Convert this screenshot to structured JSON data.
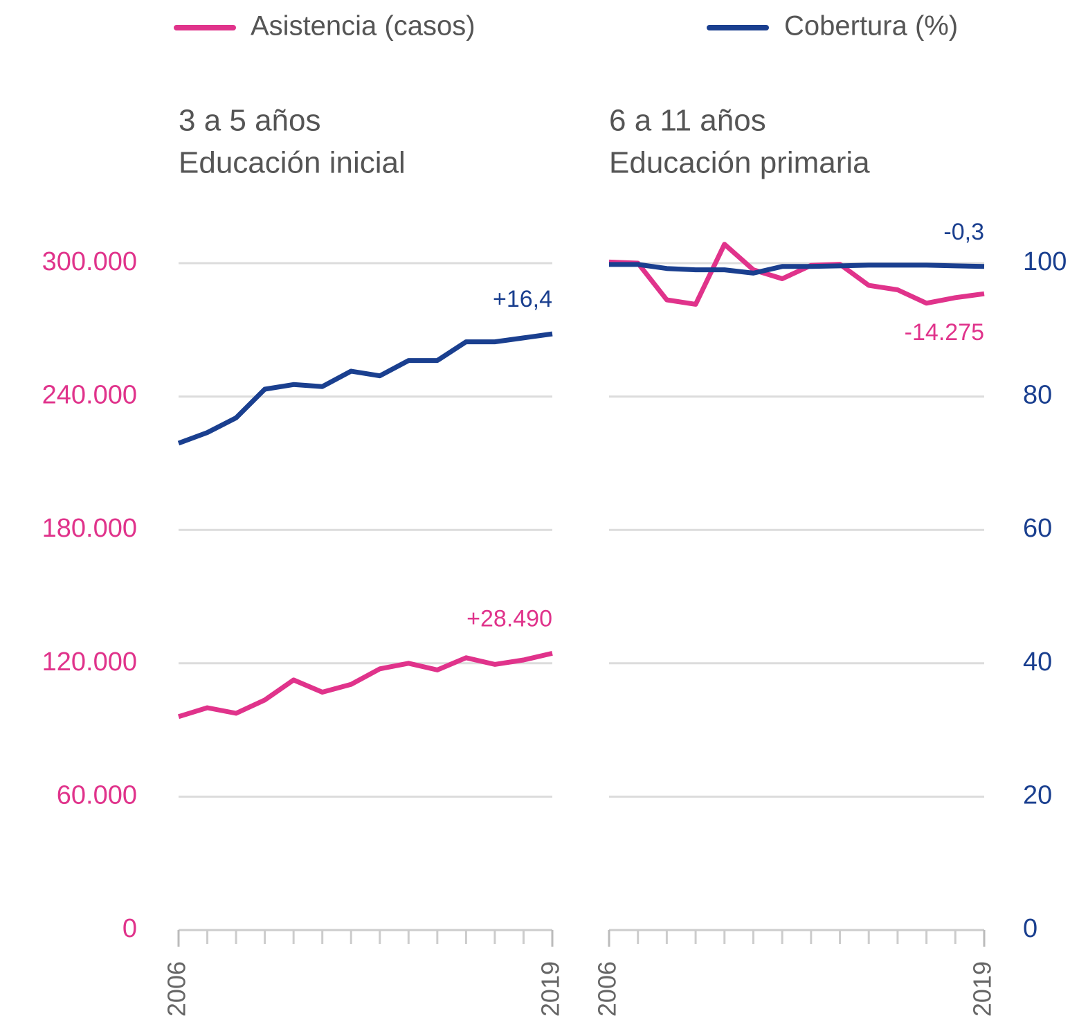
{
  "chart_data": [
    {
      "type": "line",
      "title": "3 a 5 años",
      "subtitle": "Educación inicial",
      "x": [
        2006,
        2007,
        2008,
        2009,
        2010,
        2011,
        2012,
        2013,
        2014,
        2015,
        2016,
        2017,
        2018,
        2019
      ],
      "xlim": [
        2006,
        2019
      ],
      "xticks": [
        2006,
        2019
      ],
      "ylim": [
        0,
        300000
      ],
      "yticks": [
        0,
        {
          "value": 60000,
          "label": "60.000"
        },
        {
          "value": 120000,
          "label": "120.000"
        },
        {
          "value": 180000,
          "label": "180.000"
        },
        {
          "value": 240000,
          "label": "240.000"
        },
        {
          "value": 300000,
          "label": "300.000"
        }
      ],
      "y2lim": [
        0,
        100
      ],
      "grid": true,
      "series": [
        {
          "name": "Asistencia (casos)",
          "color": "#e0338b",
          "axis": "y",
          "end_label": "+28.490",
          "values": [
            96000,
            100000,
            97500,
            103500,
            112500,
            107000,
            110500,
            117500,
            120000,
            117000,
            122500,
            119500,
            121500,
            124490
          ]
        },
        {
          "name": "Cobertura (%)",
          "color": "#1a3f8f",
          "axis": "y2",
          "end_label": "+16,4",
          "values": [
            73.0,
            74.6,
            76.8,
            81.1,
            81.8,
            81.5,
            83.8,
            83.1,
            85.4,
            85.4,
            88.2,
            88.2,
            88.8,
            89.4
          ]
        }
      ]
    },
    {
      "type": "line",
      "title": "6 a 11 años",
      "subtitle": "Educación primaria",
      "x": [
        2006,
        2007,
        2008,
        2009,
        2010,
        2011,
        2012,
        2013,
        2014,
        2015,
        2016,
        2017,
        2018,
        2019
      ],
      "xlim": [
        2006,
        2019
      ],
      "xticks": [
        2006,
        2019
      ],
      "ylim": [
        0,
        300000
      ],
      "y2lim": [
        0,
        100
      ],
      "y2ticks": [
        0,
        20,
        40,
        60,
        80,
        100
      ],
      "grid": true,
      "series": [
        {
          "color": "#e0338b",
          "axis": "y",
          "end_label": "-14.275",
          "values": [
            300500,
            300000,
            283500,
            281500,
            308500,
            297000,
            293000,
            299000,
            299500,
            290000,
            288000,
            282000,
            284500,
            286225
          ]
        },
        {
          "color": "#1a3f8f",
          "axis": "y2",
          "end_label": "-0,3",
          "values": [
            99.8,
            99.8,
            99.2,
            99.0,
            99.0,
            98.5,
            99.5,
            99.5,
            99.6,
            99.7,
            99.7,
            99.7,
            99.6,
            99.5
          ]
        }
      ]
    }
  ]
}
